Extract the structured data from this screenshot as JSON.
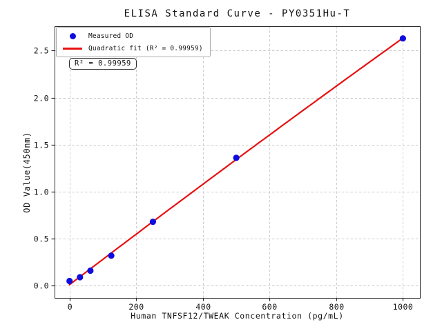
{
  "chart_data": {
    "type": "scatter",
    "title": "ELISA Standard Curve - PY0351Hu-T",
    "xlabel": "Human TNFSF12/TWEAK Concentration (pg/mL)",
    "ylabel": "OD Value(450nm)",
    "x_ticks": [
      "0",
      "200",
      "400",
      "600",
      "800",
      "1000"
    ],
    "y_ticks": [
      "0.0",
      "0.5",
      "1.0",
      "1.5",
      "2.0",
      "2.5"
    ],
    "xlim": [
      -45,
      1051
    ],
    "ylim": [
      -0.13,
      2.76
    ],
    "grid": true,
    "legend_position": "upper left",
    "series": [
      {
        "name": "Measured OD",
        "type": "scatter",
        "marker": "circle",
        "color": "#0d0de0",
        "x": [
          0,
          31.2,
          62.5,
          125,
          250,
          500,
          1000
        ],
        "y": [
          0.05,
          0.09,
          0.16,
          0.32,
          0.68,
          1.36,
          2.63
        ]
      },
      {
        "name": "Quadratic fit (R² = 0.99959)",
        "type": "line",
        "fit": "quadratic",
        "r_squared": 0.99959,
        "color": "#e81010"
      }
    ],
    "annotation": {
      "text": "R² = 0.99959"
    }
  },
  "styles": {
    "background": "#ffffff",
    "grid_color": "#c9c9c9",
    "spine_color": "#2b2b2b",
    "tick_color": "#2b2b2b",
    "text_color": "#141414"
  }
}
